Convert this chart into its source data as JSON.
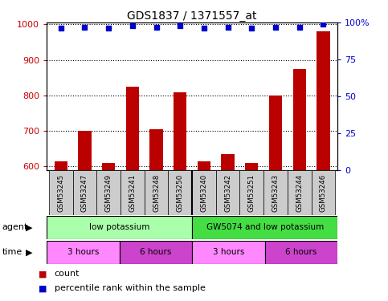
{
  "title": "GDS1837 / 1371557_at",
  "samples": [
    "GSM53245",
    "GSM53247",
    "GSM53249",
    "GSM53241",
    "GSM53248",
    "GSM53250",
    "GSM53240",
    "GSM53242",
    "GSM53251",
    "GSM53243",
    "GSM53244",
    "GSM53246"
  ],
  "counts": [
    615,
    700,
    610,
    825,
    705,
    808,
    615,
    635,
    610,
    800,
    875,
    980
  ],
  "percentile_ranks": [
    96,
    97,
    96,
    98,
    97,
    98,
    96,
    97,
    96,
    97,
    97,
    99
  ],
  "bar_color": "#bb0000",
  "dot_color": "#0000cc",
  "ylim_left": [
    590,
    1005
  ],
  "ylim_right": [
    0,
    100
  ],
  "yticks_left": [
    600,
    700,
    800,
    900,
    1000
  ],
  "yticks_right": [
    0,
    25,
    50,
    75,
    100
  ],
  "ytick_right_labels": [
    "0",
    "25",
    "50",
    "75",
    "100%"
  ],
  "agent_labels": [
    {
      "text": "low potassium",
      "start": 0,
      "end": 6,
      "color": "#aaffaa"
    },
    {
      "text": "GW5074 and low potassium",
      "start": 6,
      "end": 12,
      "color": "#44dd44"
    }
  ],
  "time_labels": [
    {
      "text": "3 hours",
      "start": 0,
      "end": 3,
      "color": "#ff88ff"
    },
    {
      "text": "6 hours",
      "start": 3,
      "end": 6,
      "color": "#cc44cc"
    },
    {
      "text": "3 hours",
      "start": 6,
      "end": 9,
      "color": "#ff88ff"
    },
    {
      "text": "6 hours",
      "start": 9,
      "end": 12,
      "color": "#cc44cc"
    }
  ],
  "sample_box_color": "#cccccc",
  "bg_color": "#ffffff",
  "grid_color": "#000000",
  "tick_label_color_left": "#cc0000",
  "tick_label_color_right": "#0000cc",
  "bar_width": 0.55,
  "n_samples": 12
}
